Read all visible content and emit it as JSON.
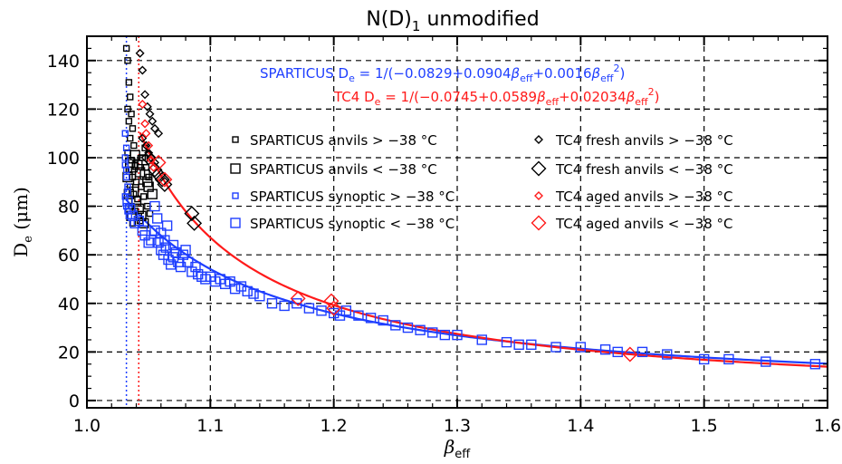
{
  "chart_data": {
    "type": "scatter",
    "title_main": "N(D)",
    "title_sub": "1",
    "title_rest": " unmodified",
    "xlabel_main": "β",
    "xlabel_sub": "eff",
    "ylabel_main": "D",
    "ylabel_sub": "e",
    "ylabel_unit": " (μm)",
    "xlim": [
      1.0,
      1.6
    ],
    "ylim": [
      -3,
      150
    ],
    "x_ticks": [
      "1.0",
      "1.1",
      "1.2",
      "1.3",
      "1.4",
      "1.5",
      "1.6"
    ],
    "y_ticks": [
      "0",
      "20",
      "40",
      "60",
      "80",
      "100",
      "120",
      "140"
    ],
    "grid": true,
    "colors": {
      "sparticus": "#1f3fff",
      "tc4": "#ff1a1a",
      "black": "#000000"
    },
    "equations": [
      {
        "label": "SPARTICUS",
        "color": "#1f3fff",
        "text": "SPARTICUS D_e = 1/(−0.0829+0.0904β_eff+0.0016β_eff²)",
        "parts": [
          "SPARTICUS ",
          "D",
          "e",
          " = 1/(−0.0829+0.0904",
          "β",
          "eff",
          "+0.0016",
          "β",
          "eff",
          "2",
          ")"
        ]
      },
      {
        "label": "TC4",
        "color": "#ff1a1a",
        "text": "TC4 D_e = 1/(−0.0745+0.0589β_eff+0.02034β_eff²)",
        "parts": [
          "TC4 ",
          "D",
          "e",
          " = 1/(−0.0745+0.0589",
          "β",
          "eff",
          "+0.02034",
          "β",
          "eff",
          "2",
          ")"
        ]
      }
    ],
    "fits": [
      {
        "name": "SPARTICUS fit",
        "color": "#1f3fff",
        "coef": [
          -0.0829,
          0.0904,
          0.0016
        ],
        "x_range": [
          1.032,
          1.6
        ]
      },
      {
        "name": "TC4 fit",
        "color": "#ff1a1a",
        "coef": [
          -0.0745,
          0.0589,
          0.02034
        ],
        "x_range": [
          1.043,
          1.6
        ]
      }
    ],
    "vertical_lines": [
      {
        "x": 1.032,
        "color": "#1f3fff"
      },
      {
        "x": 1.042,
        "color": "#ff1a1a"
      }
    ],
    "legend": [
      {
        "label": "SPARTICUS anvils > −38 °C",
        "marker": "square",
        "size": "small",
        "color": "#000000",
        "column": 1
      },
      {
        "label": "SPARTICUS anvils < −38 °C",
        "marker": "square",
        "size": "large",
        "color": "#000000",
        "column": 1
      },
      {
        "label": "SPARTICUS synoptic > −38 °C",
        "marker": "square",
        "size": "small",
        "color": "#1f3fff",
        "column": 1
      },
      {
        "label": "SPARTICUS synoptic < −38 °C",
        "marker": "square",
        "size": "large",
        "color": "#1f3fff",
        "column": 1
      },
      {
        "label": "TC4 fresh anvils > −38 °C",
        "marker": "diamond",
        "size": "small",
        "color": "#000000",
        "column": 2
      },
      {
        "label": "TC4 fresh anvils < −38 °C",
        "marker": "diamond",
        "size": "large",
        "color": "#000000",
        "column": 2
      },
      {
        "label": "TC4 aged anvils > −38 °C",
        "marker": "diamond",
        "size": "small",
        "color": "#ff1a1a",
        "column": 2
      },
      {
        "label": "TC4 aged anvils < −38 °C",
        "marker": "diamond",
        "size": "large",
        "color": "#ff1a1a",
        "column": 2
      }
    ],
    "series": [
      {
        "name": "SPARTICUS anvils > −38 °C",
        "marker": "square",
        "size": "small",
        "color": "#000000",
        "points": [
          [
            1.032,
            145
          ],
          [
            1.033,
            140
          ],
          [
            1.034,
            131
          ],
          [
            1.035,
            125
          ],
          [
            1.033,
            120
          ],
          [
            1.036,
            118
          ],
          [
            1.034,
            115
          ],
          [
            1.037,
            112
          ],
          [
            1.035,
            108
          ],
          [
            1.038,
            105
          ],
          [
            1.033,
            102
          ],
          [
            1.036,
            99
          ],
          [
            1.039,
            97
          ],
          [
            1.034,
            95
          ],
          [
            1.037,
            92
          ],
          [
            1.04,
            90
          ],
          [
            1.035,
            88
          ],
          [
            1.038,
            85
          ],
          [
            1.041,
            83
          ],
          [
            1.036,
            80
          ],
          [
            1.039,
            78
          ],
          [
            1.042,
            76
          ],
          [
            1.043,
            74
          ],
          [
            1.037,
            73
          ],
          [
            1.045,
            100
          ],
          [
            1.048,
            96
          ],
          [
            1.047,
            104
          ],
          [
            1.05,
            92
          ],
          [
            1.044,
            88
          ],
          [
            1.046,
            84
          ],
          [
            1.049,
            80
          ],
          [
            1.051,
            77
          ]
        ]
      },
      {
        "name": "SPARTICUS anvils < −38 °C",
        "marker": "square",
        "size": "large",
        "color": "#000000",
        "points": [
          [
            1.033,
            92
          ],
          [
            1.035,
            98
          ],
          [
            1.037,
            96
          ],
          [
            1.039,
            101
          ],
          [
            1.041,
            97
          ],
          [
            1.043,
            94
          ],
          [
            1.045,
            99
          ],
          [
            1.047,
            93
          ],
          [
            1.049,
            90
          ],
          [
            1.038,
            86
          ],
          [
            1.04,
            82
          ],
          [
            1.042,
            79
          ],
          [
            1.044,
            76
          ],
          [
            1.046,
            73
          ],
          [
            1.036,
            76
          ],
          [
            1.05,
            88
          ],
          [
            1.053,
            85
          ],
          [
            1.034,
            85
          ]
        ]
      },
      {
        "name": "SPARTICUS synoptic > −38 °C",
        "marker": "square",
        "size": "small",
        "color": "#1f3fff",
        "points": [
          [
            1.031,
            110
          ],
          [
            1.032,
            104
          ],
          [
            1.031,
            97
          ],
          [
            1.032,
            92
          ],
          [
            1.033,
            88
          ],
          [
            1.031,
            84
          ],
          [
            1.032,
            80
          ],
          [
            1.033,
            78
          ],
          [
            1.034,
            76
          ],
          [
            1.031,
            100
          ],
          [
            1.032,
            95
          ],
          [
            1.033,
            86
          ]
        ]
      },
      {
        "name": "SPARTICUS synoptic < −38 °C",
        "marker": "square",
        "size": "large",
        "color": "#1f3fff",
        "points": [
          [
            1.033,
            82
          ],
          [
            1.035,
            79
          ],
          [
            1.037,
            76
          ],
          [
            1.039,
            73
          ],
          [
            1.042,
            74
          ],
          [
            1.045,
            70
          ],
          [
            1.047,
            68
          ],
          [
            1.05,
            65
          ],
          [
            1.052,
            66
          ],
          [
            1.055,
            70
          ],
          [
            1.058,
            65
          ],
          [
            1.06,
            62
          ],
          [
            1.062,
            60
          ],
          [
            1.064,
            63
          ],
          [
            1.066,
            58
          ],
          [
            1.068,
            56
          ],
          [
            1.07,
            59
          ],
          [
            1.072,
            61
          ],
          [
            1.074,
            57
          ],
          [
            1.076,
            55
          ],
          [
            1.078,
            60
          ],
          [
            1.08,
            62
          ],
          [
            1.082,
            57
          ],
          [
            1.085,
            53
          ],
          [
            1.088,
            55
          ],
          [
            1.09,
            52
          ],
          [
            1.093,
            51
          ],
          [
            1.096,
            50
          ],
          [
            1.1,
            51
          ],
          [
            1.104,
            49
          ],
          [
            1.108,
            50
          ],
          [
            1.112,
            48
          ],
          [
            1.116,
            49
          ],
          [
            1.12,
            46
          ],
          [
            1.125,
            47
          ],
          [
            1.13,
            45
          ],
          [
            1.135,
            44
          ],
          [
            1.14,
            43
          ],
          [
            1.15,
            40
          ],
          [
            1.16,
            39
          ],
          [
            1.17,
            40
          ],
          [
            1.18,
            38
          ],
          [
            1.19,
            37
          ],
          [
            1.2,
            36
          ],
          [
            1.205,
            35
          ],
          [
            1.21,
            37
          ],
          [
            1.22,
            35
          ],
          [
            1.23,
            34
          ],
          [
            1.24,
            33
          ],
          [
            1.25,
            31
          ],
          [
            1.26,
            30
          ],
          [
            1.27,
            29
          ],
          [
            1.28,
            28
          ],
          [
            1.29,
            27
          ],
          [
            1.3,
            27
          ],
          [
            1.32,
            25
          ],
          [
            1.34,
            24
          ],
          [
            1.35,
            23
          ],
          [
            1.36,
            23
          ],
          [
            1.38,
            22
          ],
          [
            1.4,
            22
          ],
          [
            1.42,
            21
          ],
          [
            1.43,
            20
          ],
          [
            1.45,
            20
          ],
          [
            1.47,
            19
          ],
          [
            1.5,
            17
          ],
          [
            1.52,
            17
          ],
          [
            1.55,
            16
          ],
          [
            1.59,
            15
          ],
          [
            1.055,
            80
          ],
          [
            1.06,
            69
          ],
          [
            1.065,
            72
          ],
          [
            1.057,
            75
          ],
          [
            1.063,
            66
          ],
          [
            1.07,
            64
          ]
        ]
      },
      {
        "name": "TC4 fresh anvils > −38 °C",
        "marker": "diamond",
        "size": "small",
        "color": "#000000",
        "points": [
          [
            1.043,
            143
          ],
          [
            1.045,
            136
          ],
          [
            1.047,
            126
          ],
          [
            1.049,
            121
          ],
          [
            1.051,
            118
          ],
          [
            1.053,
            115
          ],
          [
            1.055,
            112
          ],
          [
            1.058,
            110
          ],
          [
            1.045,
            108
          ],
          [
            1.048,
            105
          ],
          [
            1.05,
            102
          ],
          [
            1.052,
            100
          ],
          [
            1.055,
            98
          ]
        ]
      },
      {
        "name": "TC4 fresh anvils < −38 °C",
        "marker": "diamond",
        "size": "large",
        "color": "#000000",
        "points": [
          [
            1.05,
            100
          ],
          [
            1.055,
            95
          ],
          [
            1.058,
            93
          ],
          [
            1.061,
            91
          ],
          [
            1.063,
            89
          ],
          [
            1.085,
            77
          ],
          [
            1.087,
            73
          ]
        ]
      },
      {
        "name": "TC4 aged anvils > −38 °C",
        "marker": "diamond",
        "size": "small",
        "color": "#ff1a1a",
        "points": [
          [
            1.045,
            122
          ],
          [
            1.047,
            114
          ],
          [
            1.048,
            110
          ],
          [
            1.05,
            105
          ],
          [
            1.052,
            99
          ],
          [
            1.054,
            96
          ]
        ]
      },
      {
        "name": "TC4 aged anvils < −38 °C",
        "marker": "diamond",
        "size": "large",
        "color": "#ff1a1a",
        "points": [
          [
            1.063,
            91
          ],
          [
            1.058,
            98
          ],
          [
            1.171,
            42
          ],
          [
            1.198,
            41
          ],
          [
            1.2,
            38
          ],
          [
            1.44,
            19
          ]
        ]
      }
    ]
  }
}
